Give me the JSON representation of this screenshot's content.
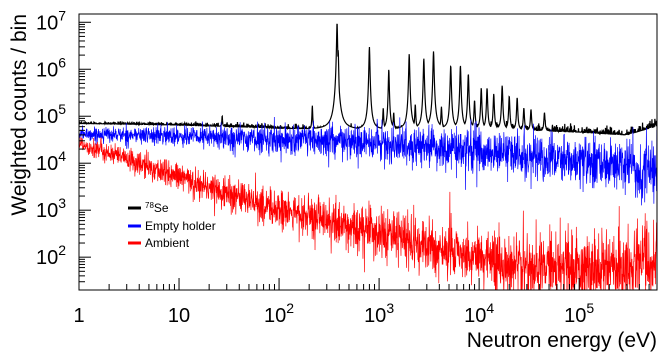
{
  "chart_data": {
    "type": "line",
    "xlabel": "Neutron energy (eV)",
    "ylabel": "Weighted counts / bin",
    "xscale": "log",
    "yscale": "log",
    "xlim": [
      1,
      600000
    ],
    "ylim": [
      20,
      15000000
    ],
    "x_ticks": [
      {
        "value": 1,
        "label": "1"
      },
      {
        "value": 10,
        "label": "10"
      },
      {
        "value": 100,
        "label": "10",
        "exp": "2"
      },
      {
        "value": 1000,
        "label": "10",
        "exp": "3"
      },
      {
        "value": 10000,
        "label": "10",
        "exp": "4"
      },
      {
        "value": 100000,
        "label": "10",
        "exp": "5"
      }
    ],
    "y_ticks": [
      {
        "value": 100,
        "label": "10",
        "exp": "2"
      },
      {
        "value": 1000,
        "label": "10",
        "exp": "3"
      },
      {
        "value": 10000,
        "label": "10",
        "exp": "4"
      },
      {
        "value": 100000,
        "label": "10",
        "exp": "5"
      },
      {
        "value": 1000000,
        "label": "10",
        "exp": "6"
      },
      {
        "value": 10000000,
        "label": "10",
        "exp": "7"
      }
    ],
    "legend_position": "lower-left",
    "series": [
      {
        "name": "78Se",
        "name_sup": "78",
        "name_main": "Se",
        "color": "#000000",
        "x": [
          1,
          3,
          10,
          20,
          60,
          100,
          200,
          400,
          1000,
          3000,
          10000,
          30000,
          100000,
          200000,
          300000,
          450000,
          600000
        ],
        "y": [
          70000,
          68000,
          65000,
          62000,
          58000,
          55000,
          53000,
          52000,
          52000,
          55000,
          55000,
          50000,
          46000,
          42000,
          40000,
          52000,
          62000
        ],
        "noise": 0.1,
        "resonances": [
          {
            "x": 27,
            "y": 105000
          },
          {
            "x": 215,
            "y": 170000
          },
          {
            "x": 380,
            "y": 10000000
          },
          {
            "x": 390,
            "y": 2600000
          },
          {
            "x": 800,
            "y": 3000000
          },
          {
            "x": 1100,
            "y": 150000
          },
          {
            "x": 1250,
            "y": 1000000
          },
          {
            "x": 1400,
            "y": 120000
          },
          {
            "x": 2000,
            "y": 2100000
          },
          {
            "x": 2300,
            "y": 180000
          },
          {
            "x": 2800,
            "y": 1700000
          },
          {
            "x": 3500,
            "y": 2400000
          },
          {
            "x": 4200,
            "y": 160000
          },
          {
            "x": 5200,
            "y": 1200000
          },
          {
            "x": 6500,
            "y": 1200000
          },
          {
            "x": 7800,
            "y": 800000
          },
          {
            "x": 9000,
            "y": 220000
          },
          {
            "x": 10500,
            "y": 400000
          },
          {
            "x": 12000,
            "y": 400000
          },
          {
            "x": 14000,
            "y": 300000
          },
          {
            "x": 17000,
            "y": 450000
          },
          {
            "x": 20000,
            "y": 270000
          },
          {
            "x": 24000,
            "y": 250000
          },
          {
            "x": 28000,
            "y": 150000
          },
          {
            "x": 33000,
            "y": 140000
          },
          {
            "x": 45000,
            "y": 120000
          }
        ]
      },
      {
        "name": "Empty holder",
        "color": "#0000ff",
        "x": [
          1,
          10,
          100,
          1000,
          10000,
          100000,
          300000,
          600000
        ],
        "y": [
          42000,
          38000,
          32000,
          26000,
          18000,
          11000,
          9000,
          7500
        ],
        "noise": 0.4
      },
      {
        "name": "Ambient",
        "color": "#ff0000",
        "x": [
          1,
          3,
          10,
          30,
          100,
          300,
          1000,
          3000,
          10000,
          30000,
          100000,
          200000,
          400000,
          600000
        ],
        "y": [
          27000,
          12000,
          5000,
          2300,
          1000,
          560,
          320,
          170,
          100,
          68,
          55,
          58,
          75,
          90
        ],
        "noise": 0.55
      }
    ]
  }
}
